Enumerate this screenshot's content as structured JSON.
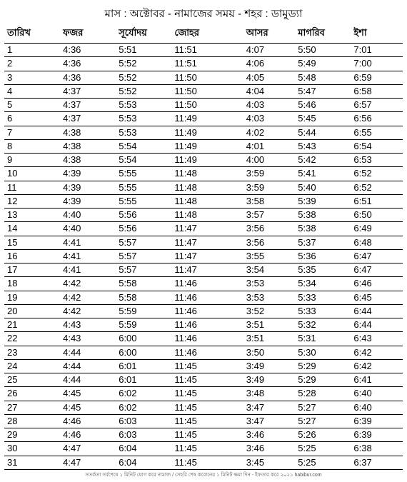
{
  "title": "মাস : অক্টোবর - নামাজের সময় - শহর : ডামুড্যা",
  "columns": [
    "তারিখ",
    "ফজর",
    "সূর্যোদয়",
    "জোহর",
    "আসর",
    "মাগরিব",
    "ইশা"
  ],
  "rows": [
    [
      "1",
      "4:36",
      "5:51",
      "11:51",
      "4:07",
      "5:50",
      "7:01"
    ],
    [
      "2",
      "4:36",
      "5:52",
      "11:51",
      "4:06",
      "5:49",
      "7:00"
    ],
    [
      "3",
      "4:36",
      "5:52",
      "11:50",
      "4:05",
      "5:48",
      "6:59"
    ],
    [
      "4",
      "4:37",
      "5:52",
      "11:50",
      "4:04",
      "5:47",
      "6:58"
    ],
    [
      "5",
      "4:37",
      "5:53",
      "11:50",
      "4:03",
      "5:46",
      "6:57"
    ],
    [
      "6",
      "4:37",
      "5:53",
      "11:49",
      "4:03",
      "5:45",
      "6:56"
    ],
    [
      "7",
      "4:38",
      "5:53",
      "11:49",
      "4:02",
      "5:44",
      "6:55"
    ],
    [
      "8",
      "4:38",
      "5:54",
      "11:49",
      "4:01",
      "5:43",
      "6:54"
    ],
    [
      "9",
      "4:38",
      "5:54",
      "11:49",
      "4:00",
      "5:42",
      "6:53"
    ],
    [
      "10",
      "4:39",
      "5:55",
      "11:48",
      "3:59",
      "5:41",
      "6:52"
    ],
    [
      "11",
      "4:39",
      "5:55",
      "11:48",
      "3:59",
      "5:40",
      "6:52"
    ],
    [
      "12",
      "4:39",
      "5:55",
      "11:48",
      "3:58",
      "5:39",
      "6:51"
    ],
    [
      "13",
      "4:40",
      "5:56",
      "11:48",
      "3:57",
      "5:38",
      "6:50"
    ],
    [
      "14",
      "4:40",
      "5:56",
      "11:47",
      "3:56",
      "5:38",
      "6:49"
    ],
    [
      "15",
      "4:41",
      "5:57",
      "11:47",
      "3:56",
      "5:37",
      "6:48"
    ],
    [
      "16",
      "4:41",
      "5:57",
      "11:47",
      "3:55",
      "5:36",
      "6:47"
    ],
    [
      "17",
      "4:41",
      "5:57",
      "11:47",
      "3:54",
      "5:35",
      "6:47"
    ],
    [
      "18",
      "4:42",
      "5:58",
      "11:46",
      "3:53",
      "5:34",
      "6:46"
    ],
    [
      "19",
      "4:42",
      "5:58",
      "11:46",
      "3:53",
      "5:33",
      "6:45"
    ],
    [
      "20",
      "4:42",
      "5:59",
      "11:46",
      "3:52",
      "5:33",
      "6:44"
    ],
    [
      "21",
      "4:43",
      "5:59",
      "11:46",
      "3:51",
      "5:32",
      "6:44"
    ],
    [
      "22",
      "4:43",
      "6:00",
      "11:46",
      "3:51",
      "5:31",
      "6:43"
    ],
    [
      "23",
      "4:44",
      "6:00",
      "11:46",
      "3:50",
      "5:30",
      "6:42"
    ],
    [
      "24",
      "4:44",
      "6:01",
      "11:45",
      "3:49",
      "5:29",
      "6:42"
    ],
    [
      "25",
      "4:44",
      "6:01",
      "11:45",
      "3:49",
      "5:29",
      "6:41"
    ],
    [
      "26",
      "4:45",
      "6:02",
      "11:45",
      "3:48",
      "5:28",
      "6:40"
    ],
    [
      "27",
      "4:45",
      "6:02",
      "11:45",
      "3:47",
      "5:27",
      "6:40"
    ],
    [
      "28",
      "4:46",
      "6:03",
      "11:45",
      "3:47",
      "5:27",
      "6:39"
    ],
    [
      "29",
      "4:46",
      "6:03",
      "11:45",
      "3:46",
      "5:26",
      "6:39"
    ],
    [
      "30",
      "4:47",
      "6:04",
      "11:45",
      "3:46",
      "5:25",
      "6:38"
    ],
    [
      "31",
      "4:47",
      "6:04",
      "11:45",
      "3:45",
      "5:25",
      "6:37"
    ]
  ],
  "footer": "সতর্কতা সর্বশেষে ১ মিনিট যোগ করে নামাজ / সেহরি শেষ করোনের ১ মিনিট ক্ষমা দিন - ইফতার করে ২০২১ habibur.com",
  "colors": {
    "text": "#000000",
    "background": "#ffffff",
    "border": "#000000",
    "footer": "#555555"
  },
  "typography": {
    "title_fontsize": 15,
    "header_fontsize": 13,
    "body_fontsize": 13,
    "footer_fontsize": 7
  },
  "table_style": {
    "col_widths_pct": [
      14,
      14,
      14,
      18,
      13,
      14,
      13
    ],
    "row_border": "1px solid #000"
  }
}
